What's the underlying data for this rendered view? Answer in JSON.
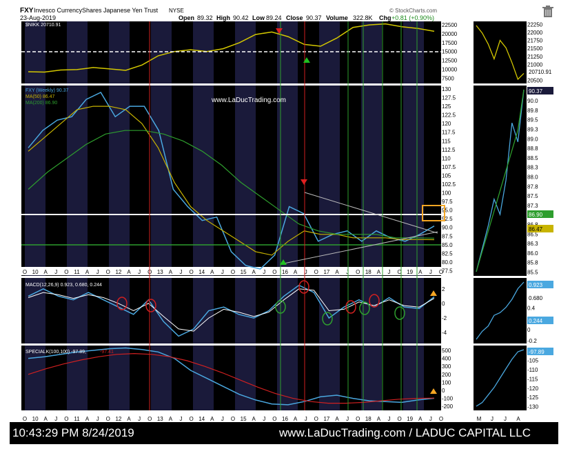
{
  "header": {
    "symbol": "FXY",
    "name": "Invesco CurrencyShares Japanese Yen Trust",
    "exchange": "NYSE",
    "date": "23-Aug-2019",
    "open_label": "Open",
    "open": "89.32",
    "high_label": "High",
    "high": "90.42",
    "low_label": "Low",
    "low": "89.24",
    "close_label": "Close",
    "close": "90.37",
    "volume_label": "Volume",
    "volume": "322.8K",
    "chg_label": "Chg",
    "chg": "+0.81 (+0.90%)",
    "brand": "© StockCharts.com",
    "trash_icon": "trash-icon"
  },
  "chart_data": [
    {
      "type": "line",
      "legend": "$NIKK 20710.91",
      "yticks": [
        7500,
        10000,
        12500,
        15000,
        17500,
        20000,
        22500
      ],
      "side_yticks": [
        20500,
        20750,
        21000,
        21250,
        21500,
        21750,
        22000,
        22250
      ],
      "last_value": "20710.91",
      "series": [
        {
          "values": [
            9300,
            9200,
            9800,
            9900,
            10500,
            10100,
            9700,
            11200,
            13800,
            15000,
            15500,
            15000,
            15800,
            17500,
            19800,
            20500,
            19200,
            17000,
            16500,
            18800,
            21800,
            22500,
            22800,
            22000,
            21500,
            20700
          ]
        }
      ]
    },
    {
      "type": "line",
      "legend": [
        "FXY (Weekly) 90.37",
        "MA(50) 86.47",
        "MA(200) 86.90"
      ],
      "yticks": [
        77.5,
        80.0,
        82.5,
        85.0,
        87.5,
        90.0,
        92.5,
        95.0,
        97.5,
        100.0,
        102.5,
        105.0,
        107.5,
        110.0,
        112.5,
        115.0,
        117.5,
        120.0,
        122.5,
        125.0,
        127.5,
        130.0
      ],
      "side_yticks": [
        85.5,
        85.75,
        86.0,
        86.25,
        86.5,
        86.75,
        87.0,
        87.25,
        87.5,
        87.75,
        88.0,
        88.25,
        88.5,
        88.75,
        89.0,
        89.25,
        89.5,
        89.75,
        90.0,
        90.25
      ],
      "side_labels": [
        "90.37",
        "86.90",
        "86.47"
      ],
      "annotation": "www.LaDucTrading.com",
      "series": [
        {
          "name": "FXY (Weekly)",
          "values": [
            113,
            118,
            121,
            122,
            127,
            129,
            122,
            125,
            125,
            118,
            101,
            96,
            92,
            93,
            83,
            79,
            78,
            82,
            96,
            94,
            86,
            88,
            89,
            86,
            89,
            87,
            86,
            88,
            90.4
          ]
        },
        {
          "name": "MA(50)",
          "values": [
            112,
            116,
            120,
            124,
            125,
            125,
            124,
            120,
            113,
            103,
            96,
            92,
            89,
            86,
            83,
            82,
            86,
            89,
            88,
            88,
            87,
            87,
            87,
            86.5,
            86.5,
            86.47
          ]
        },
        {
          "name": "MA(200)",
          "values": [
            101,
            106,
            110,
            114,
            117,
            118,
            118,
            117,
            115,
            112,
            108,
            103,
            99,
            95,
            91,
            89,
            88,
            88,
            88,
            87,
            87,
            86.9
          ]
        }
      ]
    },
    {
      "type": "line",
      "legend": "MACD(12,26,9) 0.923, 0.680, 0.244",
      "yticks": [
        -4,
        -2,
        0,
        2
      ],
      "side_yticks": [
        -0.2,
        0.0,
        0.2,
        0.4,
        0.6,
        0.8
      ],
      "side_labels": [
        "0.923",
        "0.680",
        "0.244"
      ],
      "series": [
        {
          "name": "MACD",
          "values": [
            1.0,
            2.0,
            1.0,
            0.5,
            1.5,
            0.5,
            -0.5,
            -1.5,
            0.5,
            -2.5,
            -4.5,
            -3.5,
            -1.0,
            -0.5,
            -1.5,
            -2.0,
            -1.0,
            1.0,
            2.5,
            1.5,
            -2.0,
            -0.5,
            0.5,
            -0.5,
            0.8,
            -0.5,
            -0.7,
            0.9
          ]
        },
        {
          "name": "Signal",
          "values": [
            0.8,
            1.5,
            1.2,
            0.7,
            1.2,
            0.8,
            0.0,
            -1.0,
            0.0,
            -1.8,
            -3.5,
            -3.8,
            -2.0,
            -0.8,
            -1.2,
            -1.8,
            -1.2,
            0.5,
            2.0,
            1.8,
            -1.0,
            -0.8,
            0.2,
            -0.3,
            0.5,
            -0.3,
            -0.5,
            0.7
          ]
        }
      ]
    },
    {
      "type": "line",
      "legend": [
        "SPECIALK(100,100) -97.89,",
        "-97.41"
      ],
      "yticks": [
        -200,
        -100,
        0,
        100,
        200,
        300,
        400,
        500
      ],
      "side_yticks": [
        -130,
        -125,
        -120,
        -115,
        -110,
        -105,
        -100
      ],
      "side_labels": [
        "-97.89"
      ],
      "series": [
        {
          "name": "SPECIALK",
          "values": [
            400,
            420,
            450,
            480,
            500,
            520,
            530,
            510,
            480,
            400,
            250,
            150,
            50,
            -50,
            -120,
            -170,
            -180,
            -140,
            -80,
            -60,
            -100,
            -130,
            -140,
            -150,
            -120,
            -98
          ]
        },
        {
          "name": "Signal",
          "values": [
            200,
            270,
            330,
            380,
            420,
            450,
            460,
            450,
            420,
            370,
            300,
            220,
            130,
            40,
            -40,
            -100,
            -140,
            -160,
            -160,
            -150,
            -130,
            -110,
            -100,
            -97
          ]
        }
      ]
    }
  ],
  "xaxis": {
    "labels": [
      "O",
      "10",
      "A",
      "J",
      "O",
      "11",
      "A",
      "J",
      "O",
      "12",
      "A",
      "J",
      "O",
      "13",
      "A",
      "J",
      "O",
      "14",
      "A",
      "J",
      "O",
      "15",
      "A",
      "J",
      "O",
      "16",
      "A",
      "J",
      "O",
      "17",
      "A",
      "J",
      "O",
      "18",
      "A",
      "J",
      "O",
      "19",
      "A",
      "J",
      "O"
    ],
    "side_labels": [
      "M",
      "J",
      "J",
      "A"
    ]
  },
  "footer": {
    "timestamp": "10:43:29 PM 8/24/2019",
    "credit": "www.LaDucTrading.com / LADUC CAPITAL LLC"
  }
}
